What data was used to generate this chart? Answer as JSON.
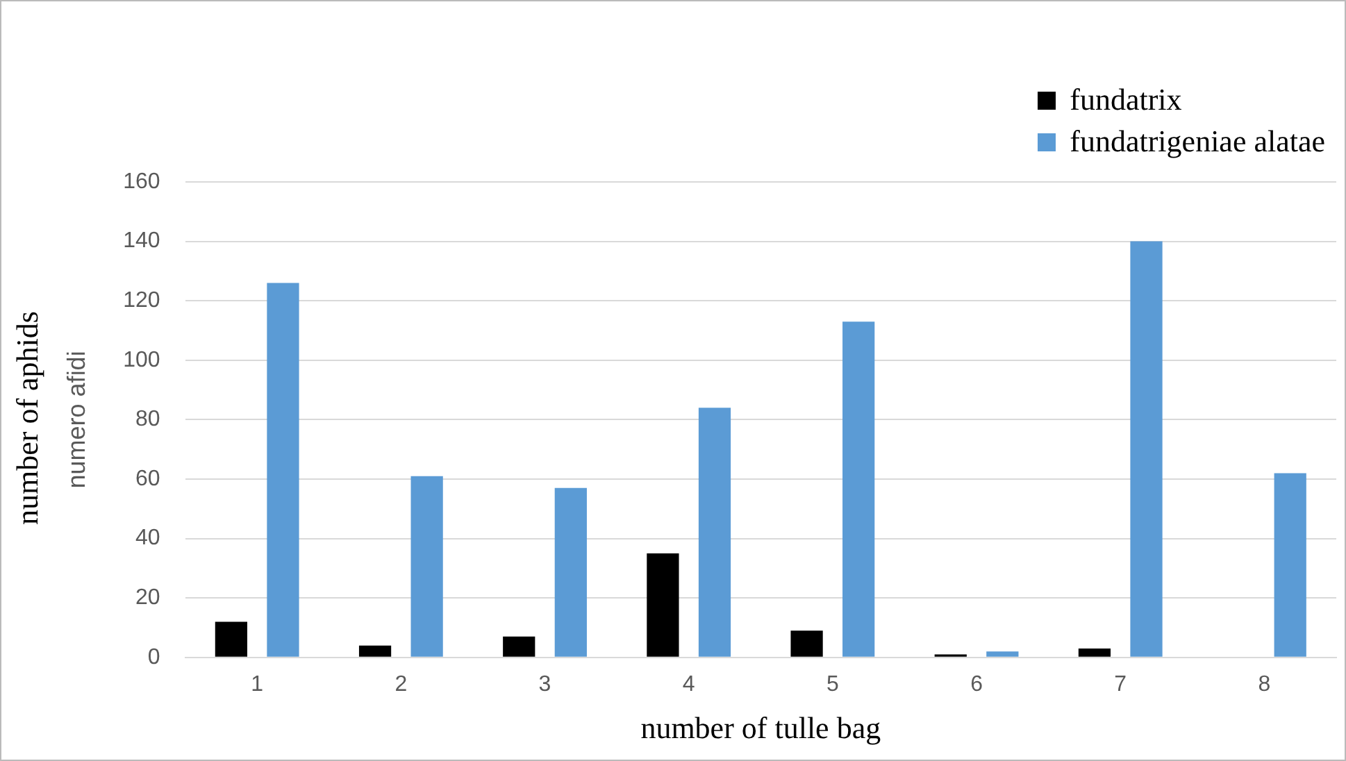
{
  "chart_data": {
    "type": "bar",
    "xlabel": "number of tulle bag",
    "ylabel": "numero afidi",
    "annotations": [
      "number of aphids"
    ],
    "categories": [
      "1",
      "2",
      "3",
      "4",
      "5",
      "6",
      "7",
      "8"
    ],
    "series": [
      {
        "name": "fundatrix",
        "color": "#000000",
        "values": [
          12,
          4,
          7,
          35,
          9,
          1,
          3,
          0
        ]
      },
      {
        "name": "fundatrigeniae alatae",
        "color": "#5b9bd5",
        "values": [
          126,
          61,
          57,
          84,
          113,
          2,
          140,
          62
        ]
      }
    ],
    "ylim": [
      0,
      160
    ],
    "yticks": [
      0,
      20,
      40,
      60,
      80,
      100,
      120,
      140,
      160
    ],
    "grid": "y",
    "legend": "top right"
  }
}
